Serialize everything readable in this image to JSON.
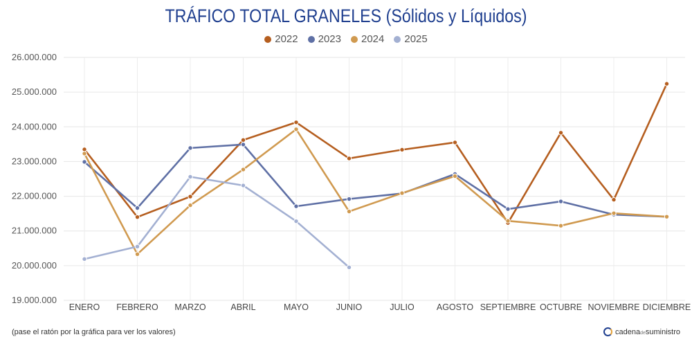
{
  "chart_data": {
    "type": "line",
    "title": "TRÁFICO TOTAL GRANELES (Sólidos y Líquidos)",
    "categories": [
      "ENERO",
      "FEBRERO",
      "MARZO",
      "ABRIL",
      "MAYO",
      "JUNIO",
      "JULIO",
      "AGOSTO",
      "SEPTIEMBRE",
      "OCTUBRE",
      "NOVIEMBRE",
      "DICIEMBRE"
    ],
    "ylim": [
      19000000,
      26000000
    ],
    "yticks": [
      {
        "value": 26000000,
        "label": "26.000.000"
      },
      {
        "value": 25000000,
        "label": "25.000.000"
      },
      {
        "value": 24000000,
        "label": "24.000.000"
      },
      {
        "value": 23000000,
        "label": "23.000.000"
      },
      {
        "value": 22000000,
        "label": "22.000.000"
      },
      {
        "value": 21000000,
        "label": "21.000.000"
      },
      {
        "value": 20000000,
        "label": "20.000.000"
      },
      {
        "value": 19000000,
        "label": "19.000.000"
      }
    ],
    "grid": true,
    "legend_position": "top-center",
    "series": [
      {
        "name": "2022",
        "color": "#b55e1f",
        "values": [
          23350000,
          21400000,
          21990000,
          23620000,
          24130000,
          23090000,
          23340000,
          23550000,
          21230000,
          23830000,
          21900000,
          25240000
        ]
      },
      {
        "name": "2023",
        "color": "#5f70a5",
        "values": [
          22990000,
          21660000,
          23390000,
          23490000,
          21710000,
          21920000,
          22080000,
          22640000,
          21630000,
          21850000,
          21470000,
          21410000
        ]
      },
      {
        "name": "2024",
        "color": "#d09a50",
        "values": [
          23230000,
          20330000,
          21740000,
          22770000,
          23930000,
          21560000,
          22090000,
          22580000,
          21290000,
          21150000,
          21510000,
          21410000
        ]
      },
      {
        "name": "2025",
        "color": "#a3b0d2",
        "values": [
          20190000,
          20550000,
          22560000,
          22310000,
          21280000,
          19950000,
          null,
          null,
          null,
          null,
          null,
          null
        ]
      }
    ]
  },
  "footnote": "(pase el ratón por la gráfica para ver los valores)",
  "brand": {
    "part1": "cadena",
    "part2": "de",
    "part3": "suministro"
  }
}
